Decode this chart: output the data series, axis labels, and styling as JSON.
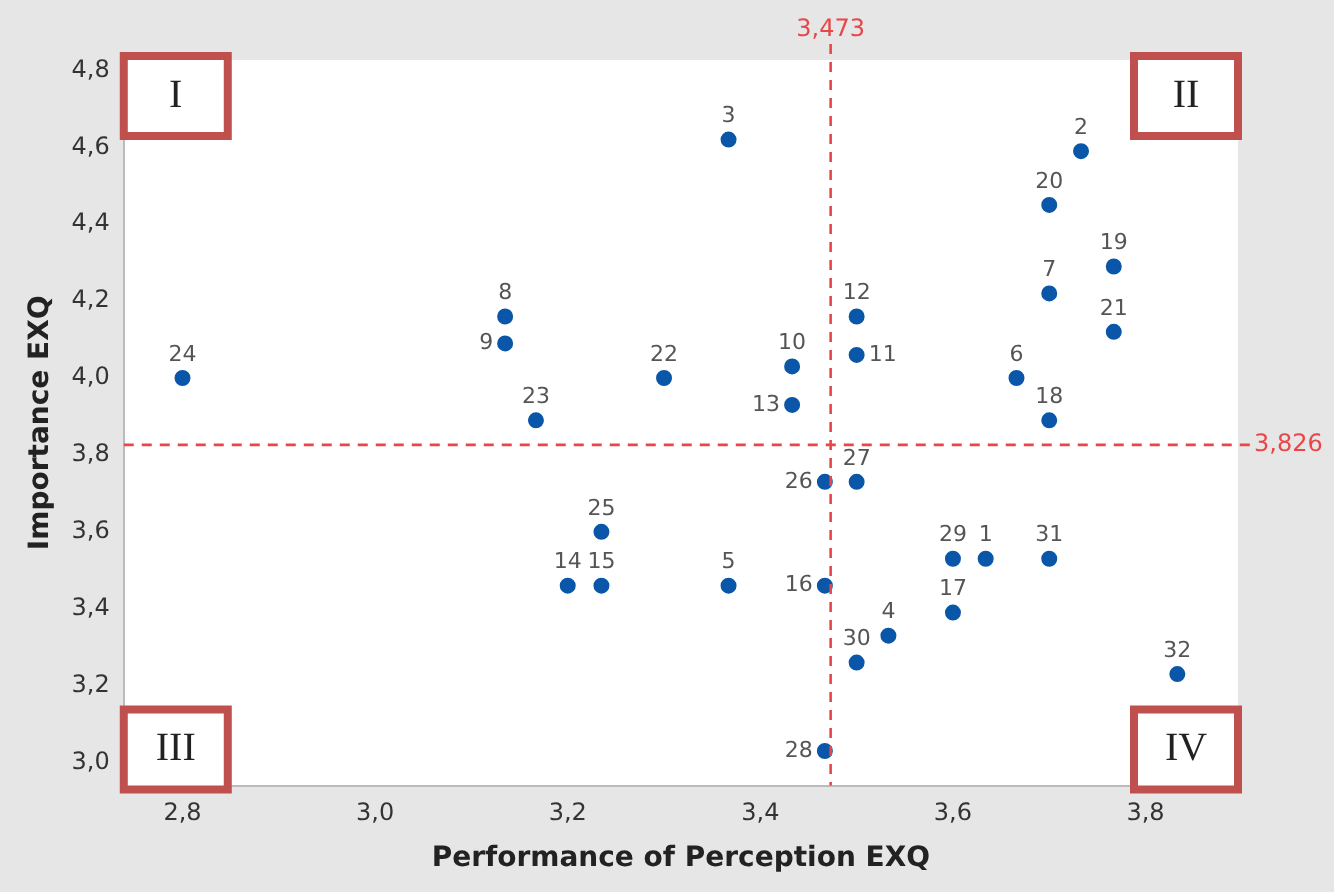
{
  "chart_data": {
    "type": "scatter",
    "xlabel": "Performance of Perception EXQ",
    "ylabel": "Importance EXQ",
    "x": [
      3.634,
      3.733,
      3.367,
      3.533,
      3.367,
      3.666,
      3.7,
      3.135,
      3.135,
      3.433,
      3.5,
      3.5,
      3.433,
      3.2,
      3.235,
      3.467,
      3.6,
      3.7,
      3.767,
      3.7,
      3.767,
      3.3,
      3.167,
      2.8,
      3.235,
      3.467,
      3.5,
      3.467,
      3.6,
      3.5,
      3.7,
      3.833
    ],
    "values": [
      3.53,
      4.59,
      4.62,
      3.33,
      3.46,
      4.0,
      4.22,
      4.16,
      4.09,
      4.03,
      4.06,
      4.16,
      3.93,
      3.46,
      3.46,
      3.46,
      3.39,
      3.89,
      4.29,
      4.45,
      4.12,
      4.0,
      3.89,
      4.0,
      3.6,
      3.73,
      3.73,
      3.03,
      3.53,
      3.26,
      3.53,
      3.23
    ],
    "color": "#0a56a8",
    "marker": "circle",
    "xlim": [
      2.739,
      3.896
    ],
    "ylim": [
      2.94,
      4.827
    ],
    "xticks": [
      {
        "value": 2.8,
        "label": "2,8"
      },
      {
        "value": 3.0,
        "label": "3,0"
      },
      {
        "value": 3.2,
        "label": "3,2"
      },
      {
        "value": 3.4,
        "label": "3,4"
      },
      {
        "value": 3.6,
        "label": "3,6"
      },
      {
        "value": 3.8,
        "label": "3,8"
      }
    ],
    "yticks": [
      {
        "value": 3.0,
        "label": "3,0"
      },
      {
        "value": 3.2,
        "label": "3,2"
      },
      {
        "value": 3.4,
        "label": "3,4"
      },
      {
        "value": 3.6,
        "label": "3,6"
      },
      {
        "value": 3.8,
        "label": "3,8"
      },
      {
        "value": 4.0,
        "label": "4,0"
      },
      {
        "value": 4.2,
        "label": "4,2"
      },
      {
        "value": 4.4,
        "label": "4,4"
      },
      {
        "value": 4.6,
        "label": "4,6"
      },
      {
        "value": 4.8,
        "label": "4,8"
      }
    ],
    "ref_lines": [
      {
        "axis": "x",
        "value": 3.473,
        "label": "3,473",
        "color": "#e8474a",
        "line_style": "dashed"
      },
      {
        "axis": "y",
        "value": 3.826,
        "label": "3,826",
        "color": "#e8474a",
        "line_style": "dashed"
      }
    ],
    "annotations": [
      "I",
      "II",
      "III",
      "IV",
      {
        "text": "1",
        "x": 3.634,
        "y": 3.53
      },
      {
        "text": "2",
        "x": 3.733,
        "y": 4.59
      },
      {
        "text": "3",
        "x": 3.367,
        "y": 4.62
      },
      {
        "text": "4",
        "x": 3.533,
        "y": 3.33
      },
      {
        "text": "5",
        "x": 3.367,
        "y": 3.46
      },
      {
        "text": "6",
        "x": 3.666,
        "y": 4.0
      },
      {
        "text": "7",
        "x": 3.7,
        "y": 4.22
      },
      {
        "text": "8",
        "x": 3.135,
        "y": 4.16
      },
      {
        "text": "9",
        "x": 3.135,
        "y": 4.09
      },
      {
        "text": "10",
        "x": 3.433,
        "y": 4.03
      },
      {
        "text": "11",
        "x": 3.5,
        "y": 4.06
      },
      {
        "text": "12",
        "x": 3.5,
        "y": 4.16
      },
      {
        "text": "13",
        "x": 3.433,
        "y": 3.93
      },
      {
        "text": "14",
        "x": 3.2,
        "y": 3.46
      },
      {
        "text": "15",
        "x": 3.235,
        "y": 3.46
      },
      {
        "text": "16",
        "x": 3.467,
        "y": 3.46
      },
      {
        "text": "17",
        "x": 3.6,
        "y": 3.39
      },
      {
        "text": "18",
        "x": 3.7,
        "y": 3.89
      },
      {
        "text": "19",
        "x": 3.767,
        "y": 4.29
      },
      {
        "text": "20",
        "x": 3.7,
        "y": 4.45
      },
      {
        "text": "21",
        "x": 3.767,
        "y": 4.12
      },
      {
        "text": "22",
        "x": 3.3,
        "y": 4.0
      },
      {
        "text": "23",
        "x": 3.167,
        "y": 3.89
      },
      {
        "text": "24",
        "x": 2.8,
        "y": 4.0
      },
      {
        "text": "25",
        "x": 3.235,
        "y": 3.6
      },
      {
        "text": "26",
        "x": 3.467,
        "y": 3.73
      },
      {
        "text": "27",
        "x": 3.5,
        "y": 3.73
      },
      {
        "text": "28",
        "x": 3.467,
        "y": 3.03
      },
      {
        "text": "29",
        "x": 3.6,
        "y": 3.53
      },
      {
        "text": "30",
        "x": 3.5,
        "y": 3.26
      },
      {
        "text": "31",
        "x": 3.7,
        "y": 3.53
      },
      {
        "text": "32",
        "x": 3.833,
        "y": 3.23
      }
    ],
    "grid": false,
    "legend": false
  }
}
